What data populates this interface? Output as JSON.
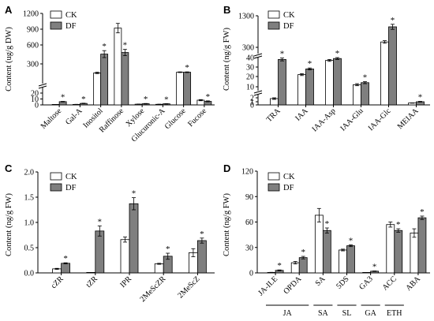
{
  "colors": {
    "ck": "#ffffff",
    "df": "#7f7f7f",
    "axis": "#000000"
  },
  "chart_data": [
    {
      "panel": "A",
      "type": "bar",
      "ylabel": "Content (ug/g DW)",
      "legend": [
        "CK",
        "DF"
      ],
      "legend_position": "top-left",
      "axis_break": true,
      "categories": [
        "Maltose",
        "Gal-A",
        "Inositol",
        "Raffinose",
        "Xylose",
        "Glucuronic-A",
        "Glucose",
        "Fucose"
      ],
      "series": [
        {
          "name": "CK",
          "values": [
            0.5,
            0.8,
            170,
            920,
            1.2,
            1.0,
            180,
            8
          ],
          "errors": [
            0.1,
            0.2,
            10,
            90,
            0.2,
            0.2,
            5,
            1
          ]
        },
        {
          "name": "DF",
          "values": [
            5.5,
            2.5,
            455,
            480,
            2.0,
            1.8,
            180,
            6
          ],
          "errors": [
            0.5,
            0.4,
            55,
            50,
            0.4,
            0.3,
            5,
            0.8
          ]
        }
      ],
      "significant": [
        true,
        true,
        true,
        true,
        true,
        true,
        true,
        true
      ],
      "y_ticks": [
        "0",
        "10",
        "20",
        "300",
        "600",
        "900",
        "1200"
      ]
    },
    {
      "panel": "B",
      "type": "bar",
      "ylabel": "Content (ng/g FW)",
      "legend": [
        "CK",
        "DF"
      ],
      "legend_position": "top-left",
      "axis_break": true,
      "categories": [
        "TRA",
        "IAA",
        "IAA-Asp",
        "IAA-Glu",
        "IAA-Glc",
        "MEIAA"
      ],
      "series": [
        {
          "name": "CK",
          "values": [
            1.8,
            22,
            37,
            12,
            470,
            0.6
          ],
          "errors": [
            0.2,
            1.0,
            1.0,
            1.0,
            40,
            0.05
          ]
        },
        {
          "name": "DF",
          "values": [
            38,
            28,
            39,
            14,
            950,
            1.0
          ],
          "errors": [
            1.5,
            1.0,
            1.0,
            1.0,
            80,
            0.1
          ]
        }
      ],
      "significant": [
        true,
        true,
        true,
        true,
        true,
        true
      ],
      "y_ticks": [
        "0",
        "1",
        "2",
        "10",
        "20",
        "30",
        "40",
        "300",
        "1300"
      ]
    },
    {
      "panel": "C",
      "type": "bar",
      "ylabel": "Content (ng/g FW)",
      "legend": [
        "CK",
        "DF"
      ],
      "legend_position": "top-left",
      "ylim": [
        0,
        2.0
      ],
      "categories": [
        "cZR",
        "tZR",
        "IPR",
        "2MeScZR",
        "2MeScZ"
      ],
      "series": [
        {
          "name": "CK",
          "values": [
            0.08,
            0.0,
            0.66,
            0.18,
            0.4
          ],
          "errors": [
            0.01,
            0.0,
            0.05,
            0.01,
            0.08
          ]
        },
        {
          "name": "DF",
          "values": [
            0.19,
            0.83,
            1.37,
            0.33,
            0.64
          ],
          "errors": [
            0.01,
            0.1,
            0.12,
            0.06,
            0.05
          ]
        }
      ],
      "significant": [
        true,
        true,
        true,
        true,
        true
      ],
      "y_ticks": [
        "0.0",
        "0.5",
        "1.0",
        "1.5",
        "2.0"
      ]
    },
    {
      "panel": "D",
      "type": "bar",
      "ylabel": "Content (ng/g FW)",
      "legend": [
        "CK",
        "DF"
      ],
      "legend_position": "top-left",
      "ylim": [
        0,
        120
      ],
      "categories": [
        "JA-ILE",
        "OPDA",
        "SA",
        "5DS",
        "GA3",
        "ACC",
        "ABA"
      ],
      "groups": [
        {
          "label": "JA",
          "span": [
            0,
            1
          ]
        },
        {
          "label": "SA",
          "span": [
            2,
            2
          ]
        },
        {
          "label": "SL",
          "span": [
            3,
            3
          ]
        },
        {
          "label": "GA",
          "span": [
            4,
            4
          ]
        },
        {
          "label": "ETH",
          "span": [
            5,
            5
          ]
        },
        {
          "label": "",
          "span": [
            6,
            6
          ]
        }
      ],
      "series": [
        {
          "name": "CK",
          "values": [
            0.5,
            12,
            68,
            27,
            0,
            57,
            47
          ],
          "errors": [
            0.2,
            1.5,
            8,
            1.0,
            0,
            3,
            5
          ]
        },
        {
          "name": "DF",
          "values": [
            3,
            18,
            50,
            32,
            2,
            50,
            65
          ],
          "errors": [
            0.5,
            1.5,
            3,
            1.0,
            0.3,
            2,
            2
          ]
        }
      ],
      "significant": [
        true,
        true,
        true,
        true,
        true,
        true,
        true
      ],
      "y_ticks": [
        "0",
        "30",
        "60",
        "90",
        "120"
      ]
    }
  ]
}
